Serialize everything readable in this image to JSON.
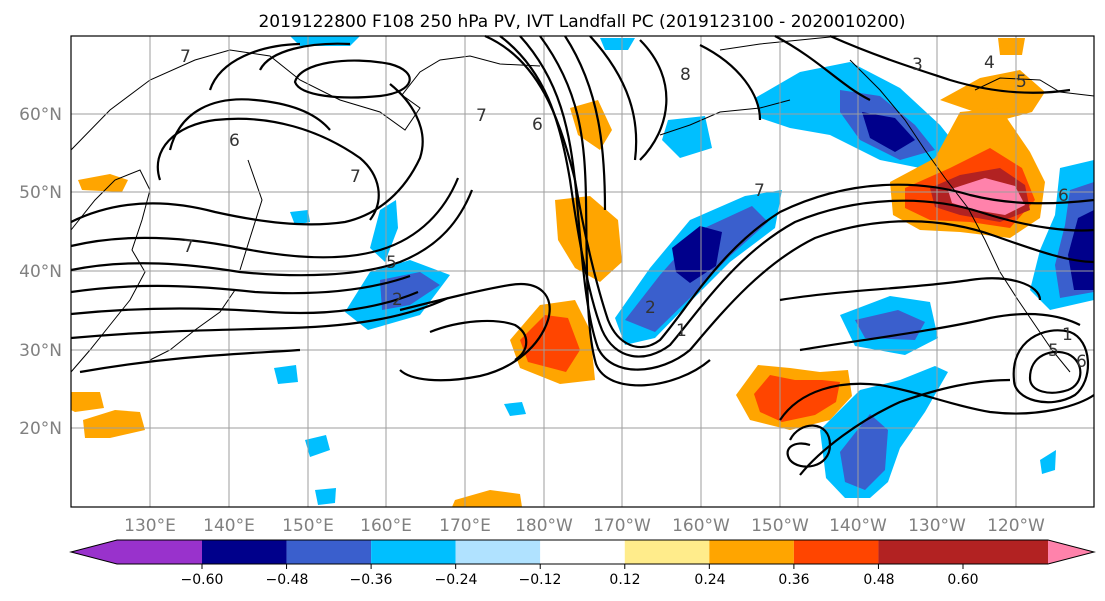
{
  "title": "2019122800 F108 250 hPa PV, IVT Landfall PC (2019123100 - 2020010200)",
  "axes": {
    "lat_labels": [
      "60°N",
      "50°N",
      "40°N",
      "30°N",
      "20°N"
    ],
    "lon_labels": [
      "130°E",
      "140°E",
      "150°E",
      "160°E",
      "170°E",
      "180°W",
      "170°W",
      "160°W",
      "150°W",
      "140°W",
      "130°W",
      "120°W"
    ]
  },
  "colorbar": {
    "tick_labels": [
      "−0.60",
      "−0.48",
      "−0.36",
      "−0.24",
      "−0.12",
      "0.12",
      "0.24",
      "0.36",
      "0.48",
      "0.60"
    ],
    "colors": [
      "#9932cc",
      "#00008b",
      "#3a5fcd",
      "#00bfff",
      "#b0e2ff",
      "#ffffff",
      "#ffec8b",
      "#ffa500",
      "#ff4500",
      "#b22222",
      "#ff82ab"
    ]
  },
  "contour_labels": [
    "7",
    "6",
    "7",
    "7",
    "5",
    "2",
    "2",
    "1",
    "6",
    "7",
    "7",
    "8",
    "3",
    "4",
    "5",
    "6",
    "6",
    "1",
    "5"
  ]
}
